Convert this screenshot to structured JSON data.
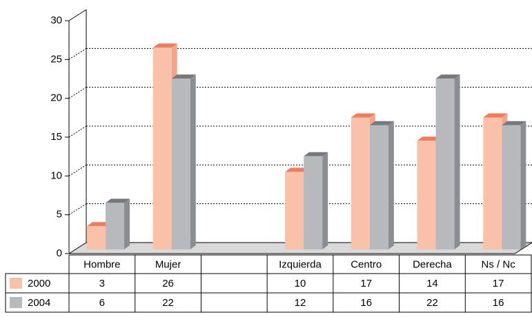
{
  "chart_data": {
    "type": "bar3d",
    "categories": [
      "Hombre",
      "Mujer",
      null,
      "Izquierda",
      "Centro",
      "Derecha",
      "Ns / Nc"
    ],
    "series": [
      {
        "name": "2000",
        "color": "#f9c0aa",
        "values": [
          3,
          26,
          null,
          10,
          17,
          14,
          17
        ]
      },
      {
        "name": "2004",
        "color": "#b8b9bd",
        "values": [
          6,
          22,
          null,
          12,
          16,
          22,
          16
        ]
      }
    ],
    "ylim": [
      0,
      30
    ],
    "yticks": [
      0,
      5,
      10,
      15,
      20,
      25,
      30
    ],
    "grid": true
  }
}
